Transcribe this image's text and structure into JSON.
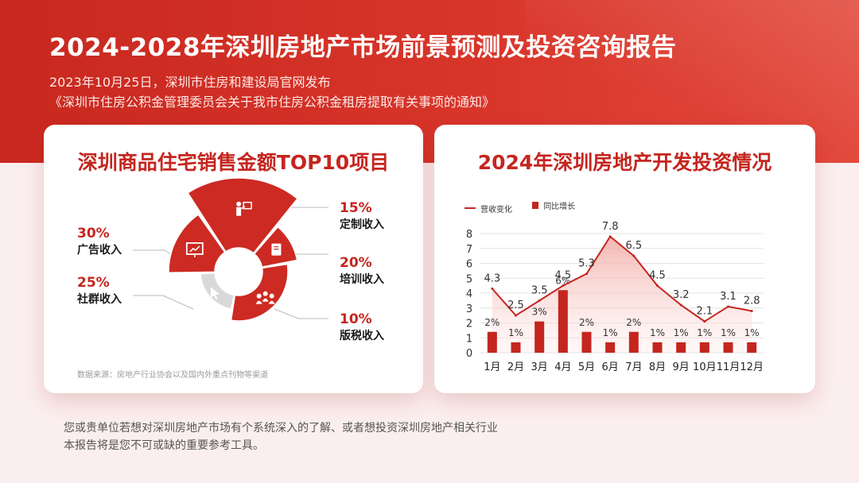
{
  "header": {
    "title": "2024-2028年深圳房地产市场前景预测及投资咨询报告",
    "subtitle_line1": "2023年10月25日，深圳市住房和建设局官网发布",
    "subtitle_line2": "《深圳市住房公积金管理委员会关于我市住房公积金租房提取有关事项的通知》"
  },
  "left_card": {
    "title": "深圳商品住宅销售金额TOP10项目",
    "source": "数据来源：房地产行业协会以及国内外重点刊物等渠道",
    "segments": [
      {
        "pct": "30%",
        "name": "广告收入",
        "icon": "cursor-icon"
      },
      {
        "pct": "15%",
        "name": "定制收入",
        "icon": "presentation-board-icon"
      },
      {
        "pct": "20%",
        "name": "培训收入",
        "icon": "teacher-icon"
      },
      {
        "pct": "10%",
        "name": "版税收入",
        "icon": "book-icon"
      },
      {
        "pct": "25%",
        "name": "社群收入",
        "icon": "group-icon"
      }
    ]
  },
  "right_card": {
    "title": "2024年深圳房地产开发投资情况",
    "legend": {
      "line": "营收变化",
      "bar": "同比增长"
    }
  },
  "chart_data": {
    "type": "bar",
    "categories": [
      "1月",
      "2月",
      "3月",
      "4月",
      "5月",
      "6月",
      "7月",
      "8月",
      "9月",
      "10月",
      "11月",
      "12月"
    ],
    "series": [
      {
        "name": "营收变化",
        "type": "area-line",
        "values": [
          4.3,
          2.5,
          3.5,
          4.5,
          5.3,
          7.8,
          6.5,
          4.5,
          3.2,
          2.1,
          3.1,
          2.8
        ]
      },
      {
        "name": "同比增长",
        "type": "bar",
        "values": [
          2,
          1,
          3,
          6,
          2,
          1,
          2,
          1,
          1,
          1,
          1,
          1
        ],
        "labels": [
          "2%",
          "1%",
          "3%",
          "6%",
          "2%",
          "1%",
          "2%",
          "1%",
          "1%",
          "1%",
          "1%",
          "1%"
        ]
      }
    ],
    "yticks": [
      "0",
      "1",
      "2",
      "3",
      "4",
      "5",
      "6",
      "7",
      "8"
    ],
    "ylim": [
      0,
      8
    ],
    "bar_scale_max": 6,
    "title": "2024年深圳房地产开发投资情况",
    "legend": "top-left",
    "grid": true,
    "colors": {
      "primary": "#c4261f",
      "area": "#f6c8c4"
    }
  },
  "footer": {
    "line1": "您或贵单位若想对深圳房地产市场有个系统深入的了解、或者想投资深圳房地产相关行业",
    "line2": "本报告将是您不可或缺的重要参考工具。"
  }
}
